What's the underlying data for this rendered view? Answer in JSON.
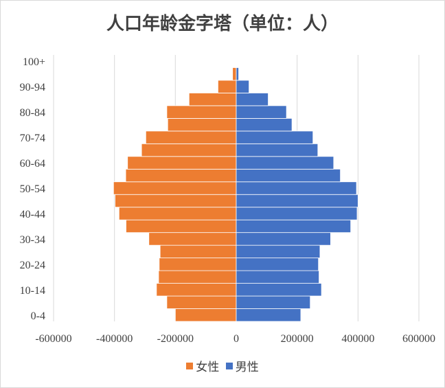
{
  "chart_data": {
    "type": "bar",
    "orientation": "horizontal",
    "stacked": "diverging",
    "title": "人口年龄金字塔（单位：人）",
    "categories": [
      "0-4",
      "5-9",
      "10-14",
      "15-19",
      "20-24",
      "25-29",
      "30-34",
      "35-39",
      "40-44",
      "45-49",
      "50-54",
      "55-59",
      "60-64",
      "65-69",
      "70-74",
      "75-79",
      "80-84",
      "85-89",
      "90-94",
      "95-99",
      "100+"
    ],
    "category_labels_shown": [
      "0-4",
      "10-14",
      "20-24",
      "30-34",
      "40-44",
      "50-54",
      "60-64",
      "70-74",
      "80-84",
      "90-94",
      "100+"
    ],
    "series": [
      {
        "name": "女性",
        "color": "#ED7D31",
        "values": [
          -200000,
          -228000,
          -262000,
          -255000,
          -253000,
          -250000,
          -287000,
          -362000,
          -385000,
          -398000,
          -403000,
          -363000,
          -357000,
          -311000,
          -297000,
          -225000,
          -228000,
          -155000,
          -60000,
          -12000,
          -1500
        ]
      },
      {
        "name": "男性",
        "color": "#4472C4",
        "values": [
          212000,
          243000,
          280000,
          272000,
          270000,
          275000,
          310000,
          376000,
          397000,
          400000,
          395000,
          342000,
          320000,
          268000,
          252000,
          183000,
          165000,
          105000,
          42000,
          8000,
          800
        ]
      }
    ],
    "xlim": [
      -600000,
      600000
    ],
    "xticks": [
      -600000,
      -400000,
      -200000,
      0,
      200000,
      400000,
      600000
    ],
    "xtick_labels": [
      "-600000",
      "-400000",
      "-200000",
      "0",
      "200000",
      "400000",
      "600000"
    ],
    "xlabel": "",
    "ylabel": "",
    "grid": "vertical",
    "legend_position": "bottom"
  }
}
